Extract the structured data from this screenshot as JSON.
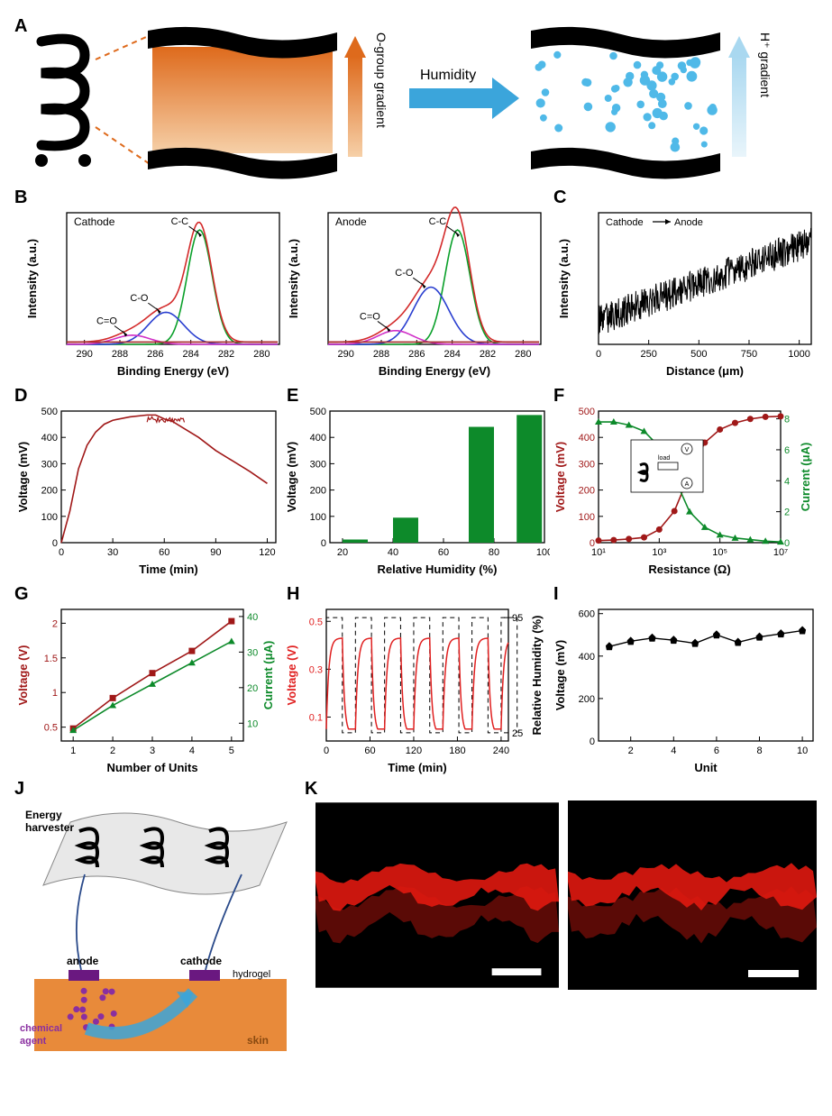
{
  "labels": {
    "A": "A",
    "B": "B",
    "C": "C",
    "D": "D",
    "E": "E",
    "F": "F",
    "G": "G",
    "H": "H",
    "I": "I",
    "J": "J",
    "K": "K"
  },
  "panelA": {
    "humidity_label": "Humidity",
    "o_gradient_label": "O-group gradient",
    "h_gradient_label": "H⁺ gradient",
    "black": "#000000",
    "orange_dark": "#de6a1c",
    "orange_light": "#f6d0a8",
    "blue_arrow": "#3ba5db",
    "blue_dots": "#4fb9e8",
    "blue_gradient_top": "#a9d8f0",
    "blue_gradient_bot": "#e9f5fb"
  },
  "panelB": {
    "title1": "Cathode",
    "title2": "Anode",
    "peaks": [
      "C-C",
      "C-O",
      "C=O"
    ],
    "xlabel": "Binding Energy (eV)",
    "ylabel": "Intensity (a.u.)",
    "xticks": [
      290,
      288,
      286,
      284,
      282,
      280
    ],
    "colors": {
      "baseline": "#a62a2a",
      "sum": "#d32a2a",
      "c_c": "#0aa02a",
      "c_o": "#2a3fd0",
      "c_eq_o": "#d030c8"
    },
    "cathode": {
      "c_c_center": 283.5,
      "c_c_height": 1.0,
      "c_o_center": 285.4,
      "c_o_height": 0.28,
      "ceo_center": 287.3,
      "ceo_height": 0.08
    },
    "anode": {
      "c_c_center": 283.7,
      "c_c_height": 1.0,
      "c_o_center": 285.2,
      "c_o_height": 0.5,
      "ceo_center": 287.2,
      "ceo_height": 0.12
    }
  },
  "panelC": {
    "xlabel": "Distance (μm)",
    "ylabel": "Intensity (a.u.)",
    "legend": "Cathode → Anode",
    "xticks": [
      0,
      250,
      500,
      750,
      1000
    ],
    "trend_start": 0.18,
    "trend_end": 0.78,
    "noise": 0.12,
    "color": "#000000"
  },
  "panelD": {
    "xlabel": "Time (min)",
    "ylabel": "Voltage (mV)",
    "xticks": [
      0,
      30,
      60,
      90,
      120
    ],
    "yticks": [
      0,
      100,
      200,
      300,
      400,
      500
    ],
    "color": "#a01818",
    "points": [
      [
        0,
        0
      ],
      [
        5,
        120
      ],
      [
        10,
        280
      ],
      [
        15,
        370
      ],
      [
        20,
        420
      ],
      [
        25,
        450
      ],
      [
        30,
        465
      ],
      [
        40,
        478
      ],
      [
        50,
        485
      ],
      [
        55,
        485
      ],
      [
        60,
        470
      ],
      [
        65,
        460
      ],
      [
        70,
        440
      ],
      [
        80,
        400
      ],
      [
        90,
        350
      ],
      [
        100,
        310
      ],
      [
        110,
        270
      ],
      [
        120,
        225
      ]
    ]
  },
  "panelE": {
    "xlabel": "Relative Humidity (%)",
    "ylabel": "Voltage (mV)",
    "xticks": [
      20,
      40,
      60,
      80,
      100
    ],
    "yticks": [
      0,
      100,
      200,
      300,
      400,
      500
    ],
    "bar_color": "#0d8a2a",
    "bars": [
      {
        "x": 25,
        "v": 12
      },
      {
        "x": 45,
        "v": 95
      },
      {
        "x": 75,
        "v": 440
      },
      {
        "x": 94,
        "v": 485
      }
    ]
  },
  "panelF": {
    "xlabel": "Resistance (Ω)",
    "ylabel_left": "Voltage (mV)",
    "ylabel_right": "Current (μA)",
    "xticks": [
      "10¹",
      "10³",
      "10⁵",
      "10⁷"
    ],
    "yticks_left": [
      0,
      100,
      200,
      300,
      400,
      500
    ],
    "yticks_right": [
      0,
      2,
      4,
      6,
      8
    ],
    "voltage_color": "#a01818",
    "current_color": "#0d8a2a",
    "voltage": [
      [
        1,
        8
      ],
      [
        1.5,
        10
      ],
      [
        2,
        14
      ],
      [
        2.5,
        20
      ],
      [
        3,
        50
      ],
      [
        3.5,
        120
      ],
      [
        4,
        260
      ],
      [
        4.5,
        380
      ],
      [
        5,
        430
      ],
      [
        5.5,
        455
      ],
      [
        6,
        470
      ],
      [
        6.5,
        478
      ],
      [
        7,
        480
      ]
    ],
    "current": [
      [
        1,
        7.8
      ],
      [
        1.5,
        7.8
      ],
      [
        2,
        7.6
      ],
      [
        2.5,
        7.2
      ],
      [
        3,
        6.2
      ],
      [
        3.5,
        4.2
      ],
      [
        4,
        2.0
      ],
      [
        4.5,
        1.0
      ],
      [
        5,
        0.5
      ],
      [
        5.5,
        0.3
      ],
      [
        6,
        0.2
      ],
      [
        6.5,
        0.1
      ],
      [
        7,
        0.05
      ]
    ],
    "inset": {
      "labels": [
        "load",
        "V",
        "A"
      ]
    }
  },
  "panelG": {
    "xlabel": "Number of Units",
    "ylabel_left": "Voltage (V)",
    "ylabel_right": "Current (μA)",
    "xticks": [
      1,
      2,
      3,
      4,
      5
    ],
    "yticks_left": [
      0.5,
      1.0,
      1.5,
      2.0
    ],
    "yticks_right": [
      10,
      20,
      30,
      40
    ],
    "voltage_color": "#a01818",
    "current_color": "#0d8a2a",
    "voltage": [
      [
        1,
        0.48
      ],
      [
        2,
        0.92
      ],
      [
        3,
        1.28
      ],
      [
        4,
        1.6
      ],
      [
        5,
        2.03
      ]
    ],
    "current": [
      [
        1,
        8
      ],
      [
        2,
        15
      ],
      [
        3,
        21
      ],
      [
        4,
        27
      ],
      [
        5,
        33
      ]
    ]
  },
  "panelH": {
    "xlabel": "Time (min)",
    "ylabel_left": "Voltage (V)",
    "ylabel_right": "Relative Humidity (%)",
    "xticks": [
      0,
      60,
      120,
      180,
      240
    ],
    "yticks_left": [
      0.1,
      0.3,
      0.5
    ],
    "yticks_right": [
      25,
      95
    ],
    "voltage_color": "#e02020",
    "humidity_color": "#000000",
    "period": 40,
    "high": 0.43,
    "low": 0.05,
    "rh_high": 95,
    "rh_low": 25
  },
  "panelI": {
    "xlabel": "Unit",
    "ylabel": "Voltage (mV)",
    "xticks": [
      2,
      4,
      6,
      8,
      10
    ],
    "yticks": [
      0,
      200,
      400,
      600
    ],
    "color": "#000000",
    "points": [
      [
        1,
        445
      ],
      [
        2,
        470
      ],
      [
        3,
        485
      ],
      [
        4,
        475
      ],
      [
        5,
        460
      ],
      [
        6,
        500
      ],
      [
        7,
        465
      ],
      [
        8,
        490
      ],
      [
        9,
        505
      ],
      [
        10,
        520
      ]
    ]
  },
  "panelJ": {
    "labels": {
      "energy_harvester": "Energy harvester",
      "anode": "anode",
      "cathode": "cathode",
      "hydrogel": "hydrogel",
      "chemical_agent": "chemical agent",
      "skin": "skin"
    },
    "skin_color": "#e88a3a",
    "electrode_color": "#6a1880",
    "dot_color": "#8a2fa0",
    "arrow_color": "#3ba5db",
    "harvester_fill": "#e8e8e8",
    "line_color": "#2a4a8a"
  },
  "panelK": {
    "bg": "#000000",
    "signal": "#e01810",
    "scalebar": "#ffffff"
  }
}
